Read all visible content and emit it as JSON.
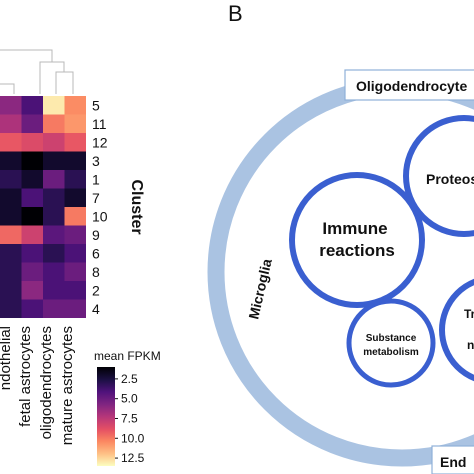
{
  "panel_b": {
    "label": "B",
    "ring_labels": {
      "top": "Oligodendrocyte",
      "left": "Microglia",
      "bottom_right": "End"
    },
    "circles": {
      "immune": {
        "line1": "Immune",
        "line2": "reactions"
      },
      "proteostasis": "Proteost",
      "substance": {
        "line1": "Substance",
        "line2": "metabolism"
      },
      "right_partial_a": "Tr",
      "right_partial_b": "n"
    },
    "colors": {
      "ring": "#aac3e2",
      "circle_stroke": "#3a5fd0"
    }
  },
  "heatmap": {
    "cluster_axis_label": "Cluster",
    "row_labels": [
      "5",
      "11",
      "12",
      "3",
      "1",
      "7",
      "10",
      "9",
      "6",
      "8",
      "2",
      "4"
    ],
    "column_labels": [
      "endothelial",
      "fetal astrocytes",
      "oligodendrocytes",
      "mature astrocytes"
    ],
    "column_label_visible_text": [
      "ndothelial",
      "fetal astrocytes",
      "oligodendrocytes",
      "mature astrocytes"
    ],
    "colorbar": {
      "title": "mean FPKM",
      "ticks": [
        "2.5",
        "5.0",
        "7.5",
        "10.0",
        "12.5"
      ],
      "tick_values": [
        2.5,
        5.0,
        7.5,
        10.0,
        12.5
      ],
      "range": [
        1,
        13.5
      ],
      "colormap": "magma (dark = low, light = high)"
    },
    "values": [
      [
        6,
        4,
        13,
        10.5
      ],
      [
        7,
        5,
        10,
        10.8
      ],
      [
        9,
        8.5,
        8,
        9
      ],
      [
        2,
        1,
        2,
        2
      ],
      [
        3,
        2,
        5,
        3
      ],
      [
        2,
        4,
        3,
        2
      ],
      [
        2,
        1,
        3,
        10
      ],
      [
        9.5,
        8,
        4.5,
        5
      ],
      [
        3,
        4,
        3,
        4
      ],
      [
        3,
        5,
        4,
        5
      ],
      [
        3,
        6,
        4,
        4
      ],
      [
        3,
        4,
        5,
        5
      ]
    ]
  }
}
